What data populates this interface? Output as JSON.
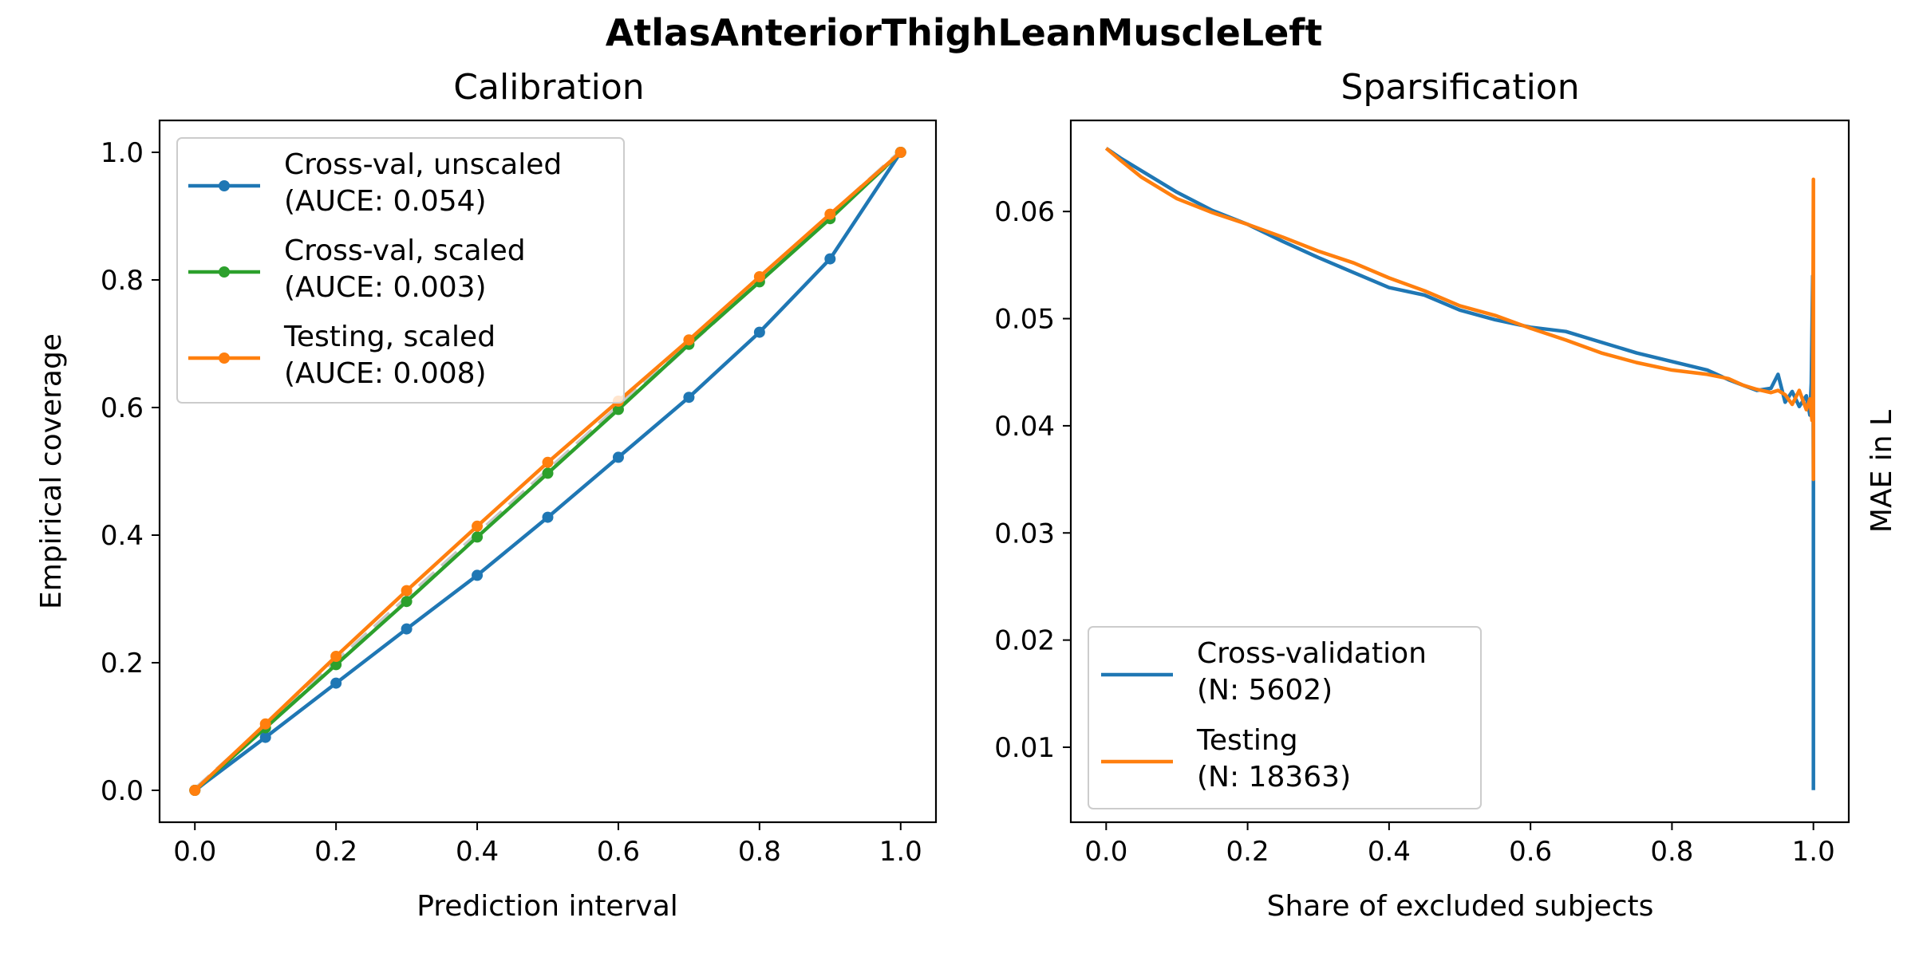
{
  "figure_title": "AtlasAnteriorThighLeanMuscleLeft",
  "colors": {
    "blue": "#1f77b4",
    "green": "#2ca02c",
    "orange": "#ff7f0e",
    "diagonal": "#c8c8c8"
  },
  "chart_data": [
    {
      "type": "line",
      "title": "Calibration",
      "xlabel": "Prediction interval",
      "ylabel": "Empirical coverage",
      "xlim": [
        -0.05,
        1.05
      ],
      "ylim": [
        -0.05,
        1.05
      ],
      "xticks": [
        "0.0",
        "0.2",
        "0.4",
        "0.6",
        "0.8",
        "1.0"
      ],
      "yticks": [
        "0.0",
        "0.2",
        "0.4",
        "0.6",
        "0.8",
        "1.0"
      ],
      "grid": false,
      "legend_position": "top-left",
      "reference_line": {
        "x": [
          0,
          1
        ],
        "y": [
          0,
          1
        ],
        "style": "dashed",
        "color": "#c8c8c8"
      },
      "x": [
        0.0,
        0.1,
        0.2,
        0.3,
        0.4,
        0.5,
        0.6,
        0.7,
        0.8,
        0.9,
        1.0
      ],
      "series": [
        {
          "name": "Cross-val, unscaled",
          "name2": "(AUCE: 0.054)",
          "color": "#1f77b4",
          "values": [
            0.0,
            0.083,
            0.168,
            0.253,
            0.337,
            0.428,
            0.522,
            0.616,
            0.718,
            0.833,
            1.0
          ]
        },
        {
          "name": "Cross-val, scaled",
          "name2": "(AUCE: 0.003)",
          "color": "#2ca02c",
          "values": [
            0.0,
            0.098,
            0.197,
            0.296,
            0.397,
            0.497,
            0.597,
            0.699,
            0.797,
            0.896,
            1.0
          ]
        },
        {
          "name": "Testing, scaled",
          "name2": "(AUCE: 0.008)",
          "color": "#ff7f0e",
          "values": [
            0.0,
            0.104,
            0.21,
            0.313,
            0.414,
            0.514,
            0.61,
            0.706,
            0.805,
            0.903,
            1.0
          ]
        }
      ]
    },
    {
      "type": "line",
      "title": "Sparsification",
      "xlabel": "Share of excluded subjects",
      "ylabel": "MAE in L",
      "ylabel_side": "right",
      "xlim": [
        -0.05,
        1.05
      ],
      "ylim": [
        0.003,
        0.0685
      ],
      "xticks": [
        "0.0",
        "0.2",
        "0.4",
        "0.6",
        "0.8",
        "1.0"
      ],
      "yticks": [
        "0.01",
        "0.02",
        "0.03",
        "0.04",
        "0.05",
        "0.06"
      ],
      "grid": false,
      "legend_position": "bottom-left",
      "series": [
        {
          "name": "Cross-validation",
          "name2": "(N: 5602)",
          "color": "#1f77b4",
          "x": [
            0.0,
            0.02,
            0.05,
            0.1,
            0.15,
            0.2,
            0.25,
            0.3,
            0.35,
            0.4,
            0.45,
            0.5,
            0.55,
            0.6,
            0.65,
            0.7,
            0.75,
            0.8,
            0.85,
            0.88,
            0.9,
            0.92,
            0.94,
            0.95,
            0.96,
            0.97,
            0.98,
            0.99,
            0.995,
            0.997,
            0.998,
            0.999,
            1.0,
            1.0,
            1.0
          ],
          "values": [
            0.0659,
            0.065,
            0.0638,
            0.0618,
            0.0601,
            0.0588,
            0.0572,
            0.0557,
            0.0543,
            0.0529,
            0.0522,
            0.0508,
            0.0499,
            0.0492,
            0.0488,
            0.0478,
            0.0468,
            0.046,
            0.0452,
            0.0443,
            0.0438,
            0.0433,
            0.0435,
            0.0448,
            0.0422,
            0.0432,
            0.0418,
            0.0428,
            0.041,
            0.044,
            0.049,
            0.054,
            0.035,
            0.015,
            0.006
          ]
        },
        {
          "name": "Testing",
          "name2": "(N: 18363)",
          "color": "#ff7f0e",
          "x": [
            0.0,
            0.02,
            0.05,
            0.1,
            0.15,
            0.2,
            0.25,
            0.3,
            0.35,
            0.4,
            0.45,
            0.5,
            0.55,
            0.6,
            0.65,
            0.7,
            0.75,
            0.8,
            0.85,
            0.88,
            0.9,
            0.92,
            0.94,
            0.95,
            0.96,
            0.97,
            0.98,
            0.99,
            0.995,
            0.998,
            0.999,
            1.0,
            1.0,
            1.0,
            1.0
          ],
          "values": [
            0.0659,
            0.0648,
            0.0632,
            0.0612,
            0.0599,
            0.0588,
            0.0576,
            0.0563,
            0.0552,
            0.0538,
            0.0526,
            0.0512,
            0.0503,
            0.0491,
            0.048,
            0.0468,
            0.0459,
            0.0452,
            0.0448,
            0.0444,
            0.0438,
            0.0434,
            0.0431,
            0.0433,
            0.0429,
            0.042,
            0.0433,
            0.0415,
            0.0425,
            0.0405,
            0.043,
            0.063,
            0.035,
            0.047,
            0.04
          ]
        }
      ]
    }
  ]
}
